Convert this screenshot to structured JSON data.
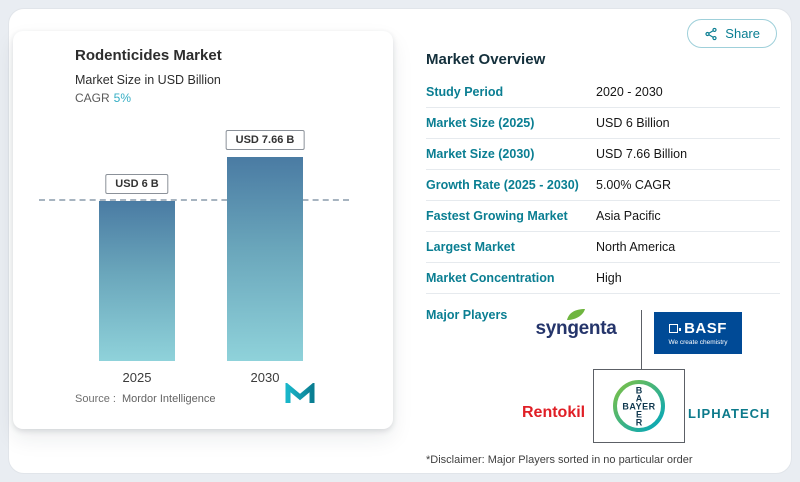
{
  "chart_panel": {
    "title": "Rodenticides Market",
    "subtitle": "Market Size in USD Billion",
    "cagr_label": "CAGR",
    "cagr_value": "5%",
    "source_prefix": "Source :",
    "source_name": "Mordor Intelligence"
  },
  "chart_data": {
    "type": "bar",
    "title": "Rodenticides Market",
    "subtitle": "Market Size in USD Billion",
    "categories": [
      "2025",
      "2030"
    ],
    "values": [
      6,
      7.66
    ],
    "unit": "USD Billion",
    "bar_value_labels": [
      "USD 6 B",
      "USD 7.66 B"
    ],
    "cagr_percent": 5,
    "reference_line_value": 6,
    "ylim": [
      0,
      8.5
    ],
    "grid": false,
    "legend": false
  },
  "share_button": {
    "label": "Share"
  },
  "overview": {
    "heading": "Market Overview",
    "rows": [
      {
        "label": "Study Period",
        "value": "2020 - 2030"
      },
      {
        "label": "Market Size (2025)",
        "value": "USD 6 Billion"
      },
      {
        "label": "Market Size (2030)",
        "value": "USD 7.66 Billion"
      },
      {
        "label": "Growth Rate (2025 - 2030)",
        "value": "5.00% CAGR"
      },
      {
        "label": "Fastest Growing Market",
        "value": "Asia Pacific"
      },
      {
        "label": "Largest Market",
        "value": "North America"
      },
      {
        "label": "Market Concentration",
        "value": "High"
      }
    ],
    "major_players_label": "Major Players",
    "disclaimer": "*Disclaimer: Major Players sorted in no particular order"
  },
  "players": {
    "syngenta": {
      "name": "syngenta"
    },
    "basf": {
      "name": "BASF",
      "tagline": "We create chemistry"
    },
    "rentokil": {
      "name": "Rentokil"
    },
    "bayer": {
      "name": "BAYER"
    },
    "liphatech": {
      "name": "LIPHATECH"
    }
  },
  "colors": {
    "accent_teal": "#0a7e92",
    "cagr_teal": "#35aec4",
    "bar_gradient_top": "#4a7ba3",
    "bar_gradient_bottom": "#8fd2da",
    "basf_blue": "#004a96",
    "rentokil_red": "#e01f26",
    "syngenta_navy": "#25356b",
    "liphatech_teal": "#0c7a8b"
  }
}
